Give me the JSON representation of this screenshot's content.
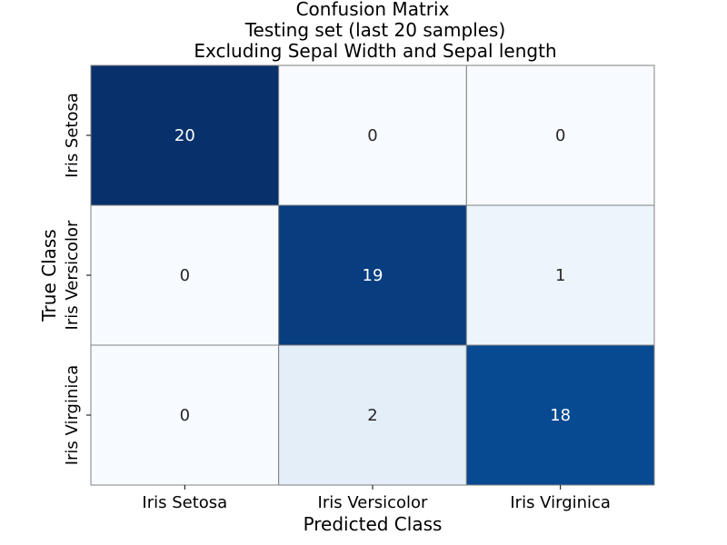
{
  "chart_data": {
    "type": "heatmap",
    "title_lines": [
      "Confusion Matrix",
      "Testing set (last 20 samples)",
      "Excluding Sepal Width and Sepal length"
    ],
    "xlabel": "Predicted Class",
    "ylabel": "True Class",
    "x_categories": [
      "Iris Setosa",
      "Iris Versicolor",
      "Iris Virginica"
    ],
    "y_categories": [
      "Iris Setosa",
      "Iris Versicolor",
      "Iris Virginica"
    ],
    "values": [
      [
        20,
        0,
        0
      ],
      [
        0,
        19,
        1
      ],
      [
        0,
        2,
        18
      ]
    ],
    "colormap": "Blues",
    "vmin": 0,
    "vmax": 20,
    "colorbar": false,
    "grid_line_color": "#808080"
  }
}
